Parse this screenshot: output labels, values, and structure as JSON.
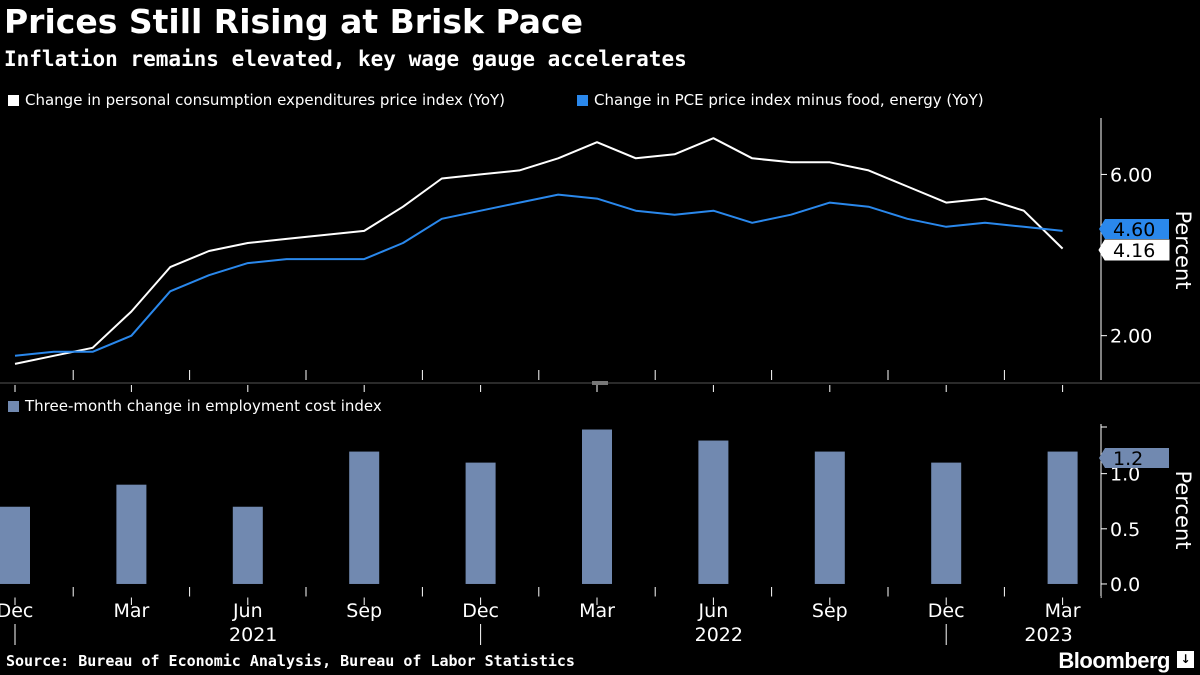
{
  "title": "Prices Still Rising at Brisk Pace",
  "subtitle": "Inflation remains elevated, key wage gauge accelerates",
  "source": "Source: Bureau of Economic Analysis, Bureau of Labor Statistics",
  "brand": "Bloomberg",
  "brand_icon_glyph": "↓",
  "colors": {
    "background": "#000000",
    "headline": "#ffffff",
    "core": "#2a88ec",
    "bars": "#7189b0",
    "axis": "#ffffff"
  },
  "chart_data": [
    {
      "type": "line",
      "title": "Prices Still Rising at Brisk Pace",
      "ylabel": "Percent",
      "ylim": [
        0.9,
        7.4
      ],
      "yticks": [
        2.0,
        6.0
      ],
      "ytick_labels": [
        "2.00",
        "6.00"
      ],
      "x": [
        "2020-12",
        "2021-01",
        "2021-02",
        "2021-03",
        "2021-04",
        "2021-05",
        "2021-06",
        "2021-07",
        "2021-08",
        "2021-09",
        "2021-10",
        "2021-11",
        "2021-12",
        "2022-01",
        "2022-02",
        "2022-03",
        "2022-04",
        "2022-05",
        "2022-06",
        "2022-07",
        "2022-08",
        "2022-09",
        "2022-10",
        "2022-11",
        "2022-12",
        "2023-01",
        "2023-02",
        "2023-03"
      ],
      "series": [
        {
          "name": "Change in personal consumption expenditures price index (YoY)",
          "color": "#ffffff",
          "end_label": "4.16",
          "values": [
            1.3,
            1.5,
            1.7,
            2.6,
            3.7,
            4.1,
            4.3,
            4.4,
            4.5,
            4.6,
            5.2,
            5.9,
            6.0,
            6.1,
            6.4,
            6.8,
            6.4,
            6.5,
            6.9,
            6.4,
            6.3,
            6.3,
            6.1,
            5.7,
            5.3,
            5.4,
            5.1,
            4.16
          ]
        },
        {
          "name": "Change in PCE price index minus food, energy (YoY)",
          "color": "#2a88ec",
          "end_label": "4.60",
          "values": [
            1.5,
            1.6,
            1.6,
            2.0,
            3.1,
            3.5,
            3.8,
            3.9,
            3.9,
            3.9,
            4.3,
            4.9,
            5.1,
            5.3,
            5.5,
            5.4,
            5.1,
            5.0,
            5.1,
            4.8,
            5.0,
            5.3,
            5.2,
            4.9,
            4.7,
            4.8,
            4.7,
            4.6
          ]
        }
      ]
    },
    {
      "type": "bar",
      "ylabel": "Percent",
      "ylim": [
        -0.1,
        1.45
      ],
      "yticks": [
        0.0,
        0.5,
        1.0
      ],
      "ytick_labels": [
        "0.0",
        "0.5",
        "1.0"
      ],
      "series": [
        {
          "name": "Three-month change in employment cost index",
          "color": "#7189b0",
          "end_label": "1.2",
          "categories": [
            "2020-12",
            "2021-03",
            "2021-06",
            "2021-09",
            "2021-12",
            "2022-03",
            "2022-06",
            "2022-09",
            "2022-12",
            "2023-03"
          ],
          "values": [
            0.7,
            0.9,
            0.7,
            1.2,
            1.1,
            1.4,
            1.3,
            1.2,
            1.1,
            1.2
          ]
        }
      ]
    }
  ],
  "xaxis": {
    "month_labels": [
      {
        "label": "Dec",
        "month_index": 0
      },
      {
        "label": "Mar",
        "month_index": 3
      },
      {
        "label": "Jun",
        "month_index": 6
      },
      {
        "label": "Sep",
        "month_index": 9
      },
      {
        "label": "Dec",
        "month_index": 12
      },
      {
        "label": "Mar",
        "month_index": 15
      },
      {
        "label": "Jun",
        "month_index": 18
      },
      {
        "label": "Sep",
        "month_index": 21
      },
      {
        "label": "Dec",
        "month_index": 24
      },
      {
        "label": "Mar",
        "month_index": 27
      }
    ],
    "year_labels": [
      {
        "label": "2021",
        "month_index": 6.5
      },
      {
        "label": "2022",
        "month_index": 18.5
      },
      {
        "label": "2023",
        "month_index": 27
      }
    ],
    "year_separators_month_index": [
      0,
      12,
      24
    ]
  }
}
